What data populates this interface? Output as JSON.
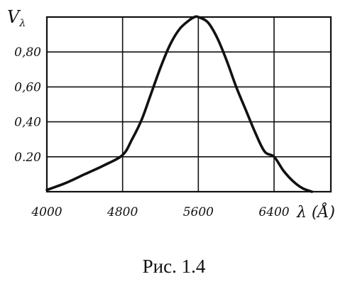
{
  "chart_data": {
    "type": "line",
    "ylabel": "Vλ",
    "ylabel_main": "V",
    "ylabel_sub": "λ",
    "xlabel": "λ (Å)",
    "xlim": [
      4000,
      7000
    ],
    "ylim": [
      0,
      1.0
    ],
    "x_ticks": [
      {
        "value": 4000,
        "label": "4000"
      },
      {
        "value": 4800,
        "label": "4800"
      },
      {
        "value": 5600,
        "label": "5600"
      },
      {
        "value": 6400,
        "label": "6400"
      }
    ],
    "y_ticks": [
      {
        "value": 0.2,
        "label": "0.20"
      },
      {
        "value": 0.4,
        "label": "0,40"
      },
      {
        "value": 0.6,
        "label": "0,60"
      },
      {
        "value": 0.8,
        "label": "0,80"
      }
    ],
    "grid": true,
    "series": [
      {
        "x": [
          4000,
          4200,
          4400,
          4600,
          4800,
          4900,
          5000,
          5100,
          5200,
          5300,
          5400,
          5500,
          5560,
          5600,
          5700,
          5800,
          5900,
          6000,
          6100,
          6200,
          6300,
          6400,
          6500,
          6600,
          6700,
          6800
        ],
        "y": [
          0.01,
          0.05,
          0.1,
          0.15,
          0.21,
          0.3,
          0.41,
          0.56,
          0.71,
          0.84,
          0.93,
          0.98,
          1.0,
          1.0,
          0.97,
          0.88,
          0.75,
          0.6,
          0.47,
          0.34,
          0.23,
          0.2,
          0.12,
          0.06,
          0.02,
          0.0
        ]
      }
    ]
  },
  "caption": "Рис. 1.4"
}
